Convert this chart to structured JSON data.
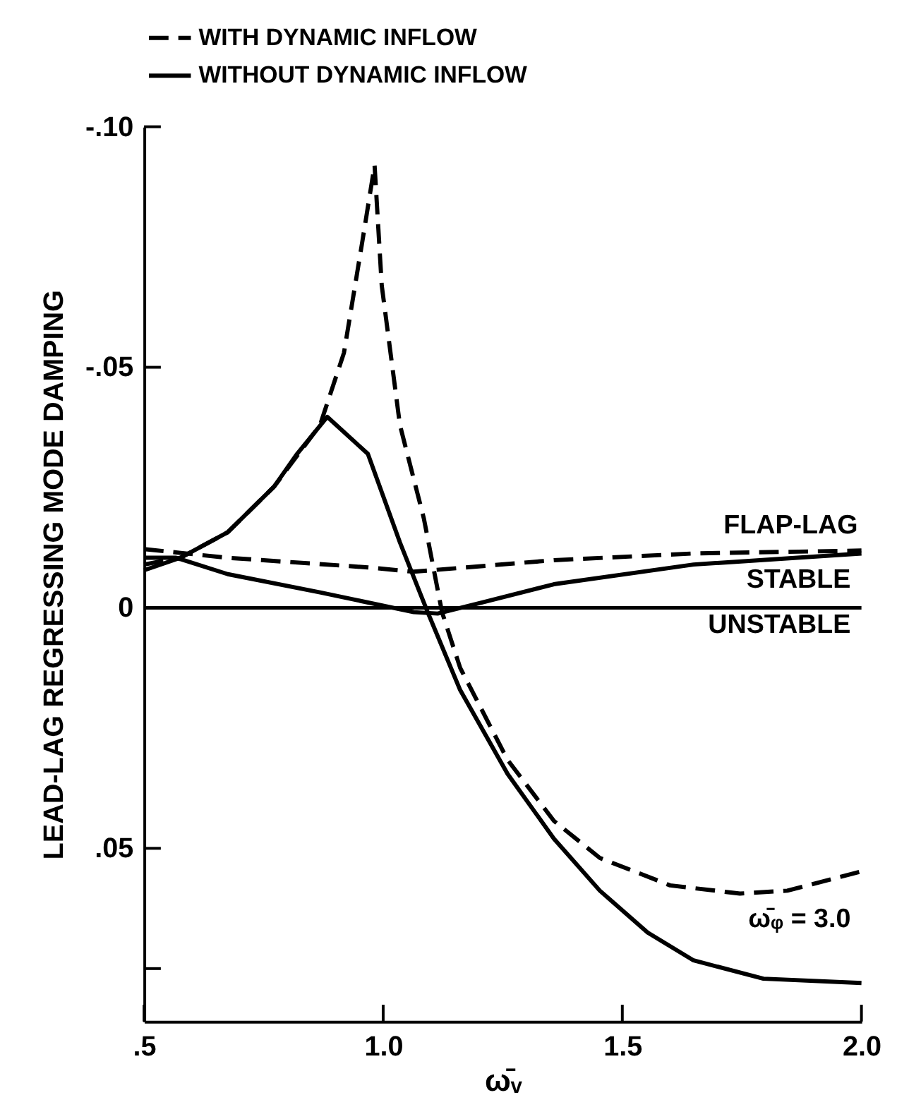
{
  "chart_data": {
    "type": "line",
    "xlabel": "ω̄ᵥ",
    "ylabel": "LEAD-LAG REGRESSING MODE DAMPING",
    "xlim": [
      0.5,
      2.0
    ],
    "xticks": [
      {
        "value": 0.5,
        "label": ".5"
      },
      {
        "value": 1.0,
        "label": "1.0"
      },
      {
        "value": 1.5,
        "label": "1.5"
      },
      {
        "value": 2.0,
        "label": "2.0"
      }
    ],
    "ylim": [
      0.086,
      -0.1
    ],
    "yticks": [
      {
        "value": -0.1,
        "label": "-.10"
      },
      {
        "value": -0.05,
        "label": "-.05"
      },
      0,
      {
        "value": 0.05,
        "label": ".05"
      },
      {
        "value": 0.075,
        "label": null
      }
    ],
    "grid": false,
    "legend": "top",
    "marker": "none",
    "series": [
      {
        "name": "WITH DYNAMIC INFLOW",
        "color": "#000000",
        "line_style": "dashed",
        "x": [
          0.5,
          0.576,
          0.675,
          0.772,
          0.868,
          0.918,
          0.957,
          0.982,
          0.997,
          1.035,
          1.085,
          1.123,
          1.161,
          1.26,
          1.357,
          1.453,
          1.6,
          1.746,
          1.845,
          2.0
        ],
        "values": [
          -0.009,
          -0.0104,
          -0.0157,
          -0.0252,
          -0.038,
          -0.053,
          -0.0765,
          -0.092,
          -0.067,
          -0.038,
          -0.0186,
          0.0009,
          0.0125,
          0.0316,
          0.0443,
          0.052,
          0.0577,
          0.0594,
          0.0588,
          0.0548
        ]
      },
      {
        "name": "WITHOUT DYNAMIC INFLOW",
        "color": "#000000",
        "line_style": "solid",
        "x": [
          0.5,
          0.576,
          0.675,
          0.772,
          0.82,
          0.883,
          0.968,
          1.035,
          1.093,
          1.161,
          1.26,
          1.357,
          1.453,
          1.553,
          1.649,
          1.795,
          2.0
        ],
        "values": [
          -0.0078,
          -0.0104,
          -0.0157,
          -0.0252,
          -0.032,
          -0.0397,
          -0.032,
          -0.0136,
          0.0009,
          0.0171,
          0.0345,
          0.048,
          0.0588,
          0.0675,
          0.0733,
          0.0771,
          0.078
        ]
      },
      {
        "color": "#000000",
        "line_style": "dashed",
        "x": [
          0.5,
          0.675,
          0.968,
          1.064,
          1.357,
          1.649,
          2.0
        ],
        "values": [
          -0.0122,
          -0.0104,
          -0.0084,
          -0.0075,
          -0.0099,
          -0.0113,
          -0.0119
        ]
      },
      {
        "color": "#000000",
        "line_style": "solid",
        "x": [
          0.5,
          0.567,
          0.675,
          0.868,
          1.064,
          1.114,
          1.21,
          1.357,
          1.649,
          2.0
        ],
        "values": [
          -0.0104,
          -0.0104,
          -0.007,
          -0.0032,
          0.0009,
          0.0012,
          -0.0012,
          -0.0049,
          -0.009,
          -0.0113
        ]
      }
    ],
    "ref_lines": [
      {
        "axis": "y",
        "value": 0,
        "color": "#000000",
        "line_style": "solid"
      }
    ],
    "annotations": [
      "FLAP-LAG",
      "STABLE",
      "UNSTABLE",
      "ω̄ᵩ = 3.0"
    ]
  }
}
